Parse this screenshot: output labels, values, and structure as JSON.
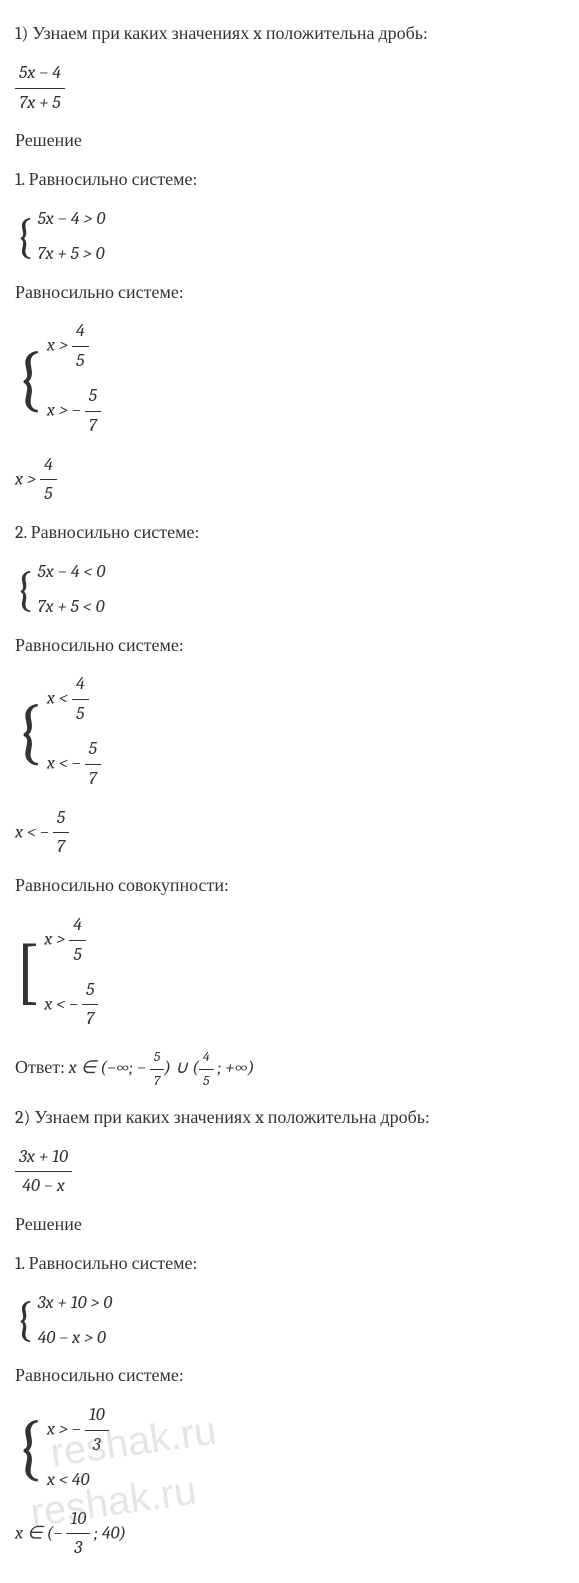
{
  "problem1": {
    "title": "1) Узнаем при каких значениях x положительна дробь:",
    "frac_num": "5x − 4",
    "frac_den": "7x + 5",
    "solution_label": "Решение",
    "step1": {
      "label": "1. Равносильно системе:",
      "sys1_a": "5x − 4 > 0",
      "sys1_b": "7x + 5 > 0",
      "equiv_label": "Равносильно системе:",
      "sys2_a_pre": "x > ",
      "sys2_a_num": "4",
      "sys2_a_den": "5",
      "sys2_b_pre": "x > − ",
      "sys2_b_num": "5",
      "sys2_b_den": "7",
      "result_pre": "x > ",
      "result_num": "4",
      "result_den": "5"
    },
    "step2": {
      "label": "2. Равносильно системе:",
      "sys1_a": "5x − 4 < 0",
      "sys1_b": "7x + 5 < 0",
      "equiv_label": "Равносильно системе:",
      "sys2_a_pre": "x < ",
      "sys2_a_num": "4",
      "sys2_a_den": "5",
      "sys2_b_pre": "x < − ",
      "sys2_b_num": "5",
      "sys2_b_den": "7",
      "result_pre": "x < − ",
      "result_num": "5",
      "result_den": "7"
    },
    "union": {
      "label": "Равносильно совокупности:",
      "a_pre": "x > ",
      "a_num": "4",
      "a_den": "5",
      "b_pre": "x < − ",
      "b_num": "5",
      "b_den": "7"
    },
    "answer": {
      "label": "Ответ: ",
      "text_pre": "x ∈ (−∞; − ",
      "f1_num": "5",
      "f1_den": "7",
      "mid": ") ∪ (",
      "f2_num": "4",
      "f2_den": "5",
      "text_post": " ; +∞)"
    }
  },
  "problem2": {
    "title": "2) Узнаем при каких значениях x положительна дробь:",
    "frac_num": "3x + 10",
    "frac_den": "40 − x",
    "solution_label": "Решение",
    "step1": {
      "label": "1. Равносильно системе:",
      "sys1_a": "3x + 10 > 0",
      "sys1_b": "40 − x > 0",
      "equiv_label": "Равносильно системе:",
      "sys2_a_pre": "x > − ",
      "sys2_a_num": "10",
      "sys2_a_den": "3",
      "sys2_b": "x < 40",
      "result_pre": "x ∈ (− ",
      "result_num": "10",
      "result_den": "3",
      "result_post": " ; 40)"
    }
  },
  "watermark1": "reshak.ru",
  "watermark2": "reshak.ru"
}
